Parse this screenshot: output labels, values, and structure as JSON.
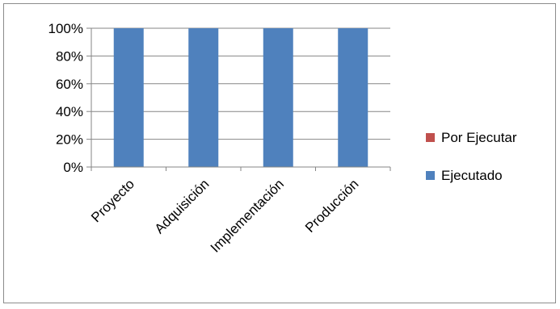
{
  "chart_data": {
    "type": "bar",
    "stacked": true,
    "percent": true,
    "categories": [
      "Proyecto",
      "Adquisición",
      "Implementación",
      "Producción"
    ],
    "series": [
      {
        "name": "Ejecutado",
        "values": [
          100,
          100,
          100,
          100
        ],
        "color": "#4f81bd"
      },
      {
        "name": "Por Ejecutar",
        "values": [
          0,
          0,
          0,
          0
        ],
        "color": "#c0504d"
      }
    ],
    "yticks": [
      "0%",
      "20%",
      "40%",
      "60%",
      "80%",
      "100%"
    ],
    "ylim": [
      0,
      100
    ],
    "grid": true,
    "legend": "right",
    "legend_order": [
      "Por Ejecutar",
      "Ejecutado"
    ]
  }
}
